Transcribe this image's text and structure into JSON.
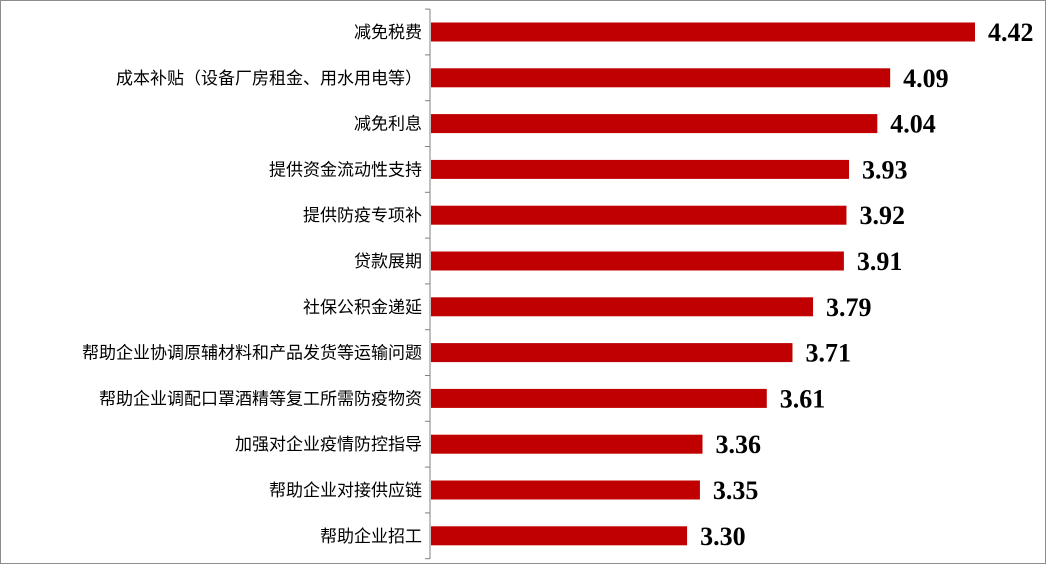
{
  "chart_data": {
    "type": "bar",
    "orientation": "horizontal",
    "categories": [
      "减免税费",
      "成本补贴（设备厂房租金、用水用电等）",
      "减免利息",
      "提供资金流动性支持",
      "提供防疫专项补",
      "贷款展期",
      "社保公积金递延",
      "帮助企业协调原辅材料和产品发货等运输问题",
      "帮助企业调配口罩酒精等复工所需防疫物资",
      "加强对企业疫情防控指导",
      "帮助企业对接供应链",
      "帮助企业招工"
    ],
    "values": [
      4.42,
      4.09,
      4.04,
      3.93,
      3.92,
      3.91,
      3.79,
      3.71,
      3.61,
      3.36,
      3.35,
      3.3
    ],
    "value_labels": [
      "4.42",
      "4.09",
      "4.04",
      "3.93",
      "3.92",
      "3.91",
      "3.79",
      "3.71",
      "3.61",
      "3.36",
      "3.35",
      "3.30"
    ],
    "xlim": [
      2.3,
      4.42
    ],
    "bar_color": "#c00000",
    "axis_color": "#808080",
    "grid": false,
    "legend": "none",
    "title": "",
    "xlabel": "",
    "ylabel": ""
  }
}
